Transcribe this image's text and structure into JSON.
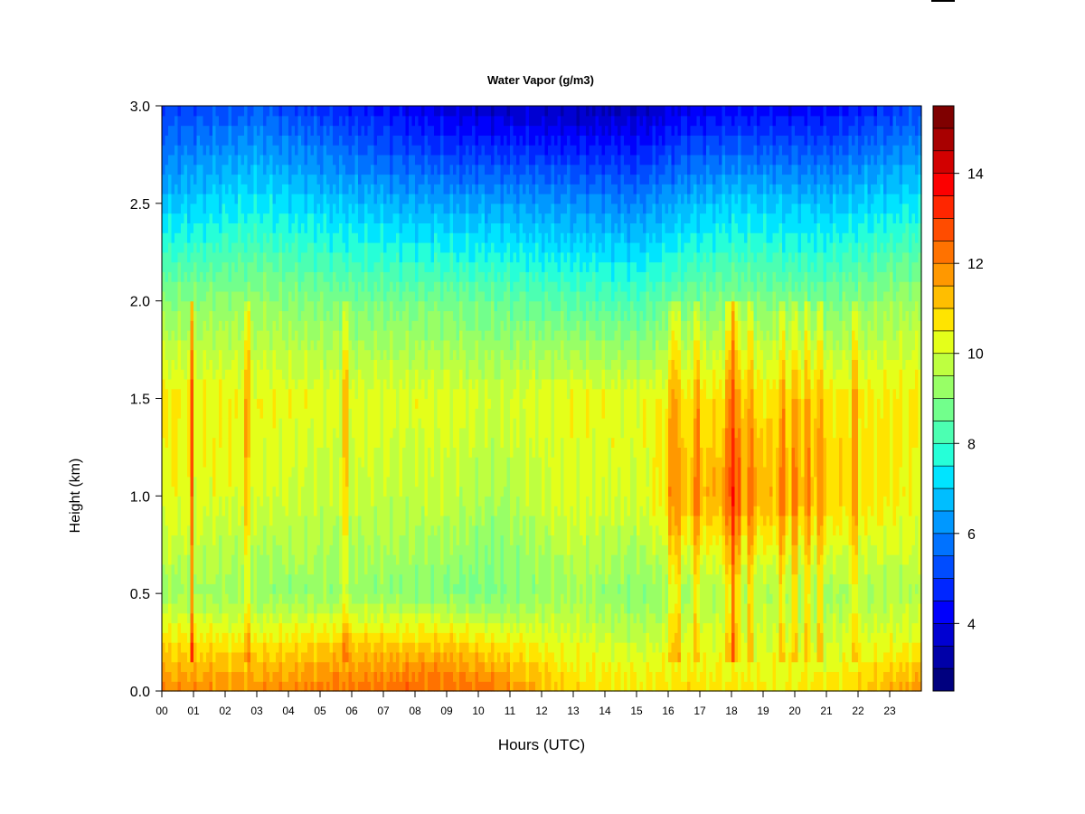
{
  "chart_data": {
    "type": "heatmap",
    "title": "Water Vapor (g/m3)",
    "xlabel": "Hours (UTC)",
    "ylabel": "Height (km)",
    "x_ticks": [
      "00",
      "01",
      "02",
      "03",
      "04",
      "05",
      "06",
      "07",
      "08",
      "09",
      "10",
      "11",
      "12",
      "13",
      "14",
      "15",
      "16",
      "17",
      "18",
      "19",
      "20",
      "21",
      "22",
      "23"
    ],
    "xlim": [
      0,
      24
    ],
    "y_ticks": [
      "0.0",
      "0.5",
      "1.0",
      "1.5",
      "2.0",
      "2.5",
      "3.0"
    ],
    "ylim": [
      0,
      3
    ],
    "colorbar": {
      "label": "Water Vapor (g/m3)",
      "range": [
        2.5,
        15.5
      ],
      "ticks": [
        "4",
        "6",
        "8",
        "10",
        "12",
        "14"
      ],
      "tick_values": [
        4,
        6,
        8,
        10,
        12,
        14
      ],
      "colors": [
        "#00007f",
        "#0000a8",
        "#0000d2",
        "#0000fc",
        "#0026ff",
        "#004cff",
        "#0072ff",
        "#0098ff",
        "#00beff",
        "#00e4ff",
        "#26ffd8",
        "#4cffb2",
        "#72ff8c",
        "#98ff66",
        "#beff40",
        "#e4ff1a",
        "#ffe400",
        "#ffbe00",
        "#ff9800",
        "#ff7200",
        "#ff4c00",
        "#ff2600",
        "#fc0000",
        "#d20000",
        "#a80000",
        "#7f0000"
      ]
    },
    "height_km": [
      0.0,
      0.1,
      0.25,
      0.5,
      1.0,
      1.5,
      2.0,
      2.5,
      3.0
    ],
    "profile_hours": [
      0,
      3,
      6,
      9,
      10.5,
      13,
      15,
      16.5,
      18,
      21,
      24
    ],
    "water_vapor_profiles": [
      [
        12.0,
        11.5,
        10.8,
        9.4,
        10.4,
        10.6,
        9.0,
        6.8,
        5.0
      ],
      [
        11.8,
        11.4,
        10.6,
        9.2,
        10.0,
        10.4,
        9.2,
        7.4,
        5.4
      ],
      [
        12.2,
        11.8,
        11.0,
        9.2,
        9.8,
        10.2,
        8.8,
        6.8,
        4.6
      ],
      [
        12.4,
        12.0,
        11.0,
        9.0,
        9.8,
        10.2,
        8.8,
        6.4,
        3.8
      ],
      [
        12.2,
        11.6,
        10.6,
        8.8,
        9.4,
        10.0,
        8.6,
        6.4,
        3.6
      ],
      [
        10.8,
        10.6,
        10.2,
        9.4,
        10.2,
        10.4,
        8.4,
        6.2,
        3.4
      ],
      [
        10.6,
        10.4,
        9.8,
        9.0,
        10.0,
        10.2,
        8.2,
        6.0,
        3.4
      ],
      [
        10.8,
        10.6,
        10.2,
        9.4,
        11.2,
        10.6,
        8.8,
        6.6,
        4.0
      ],
      [
        10.6,
        10.4,
        10.2,
        9.6,
        11.6,
        10.8,
        9.0,
        7.0,
        4.2
      ],
      [
        10.6,
        10.4,
        10.0,
        9.4,
        11.0,
        10.6,
        8.8,
        6.8,
        4.2
      ],
      [
        11.8,
        11.2,
        10.4,
        9.6,
        10.4,
        10.6,
        9.4,
        7.4,
        5.2
      ]
    ],
    "moist_streak_hours": [
      0.95,
      2.7,
      5.8,
      16.1,
      16.3,
      16.9,
      17.9,
      18.05,
      18.2,
      18.6,
      19.6,
      20.0,
      20.4,
      20.8,
      21.9
    ]
  }
}
